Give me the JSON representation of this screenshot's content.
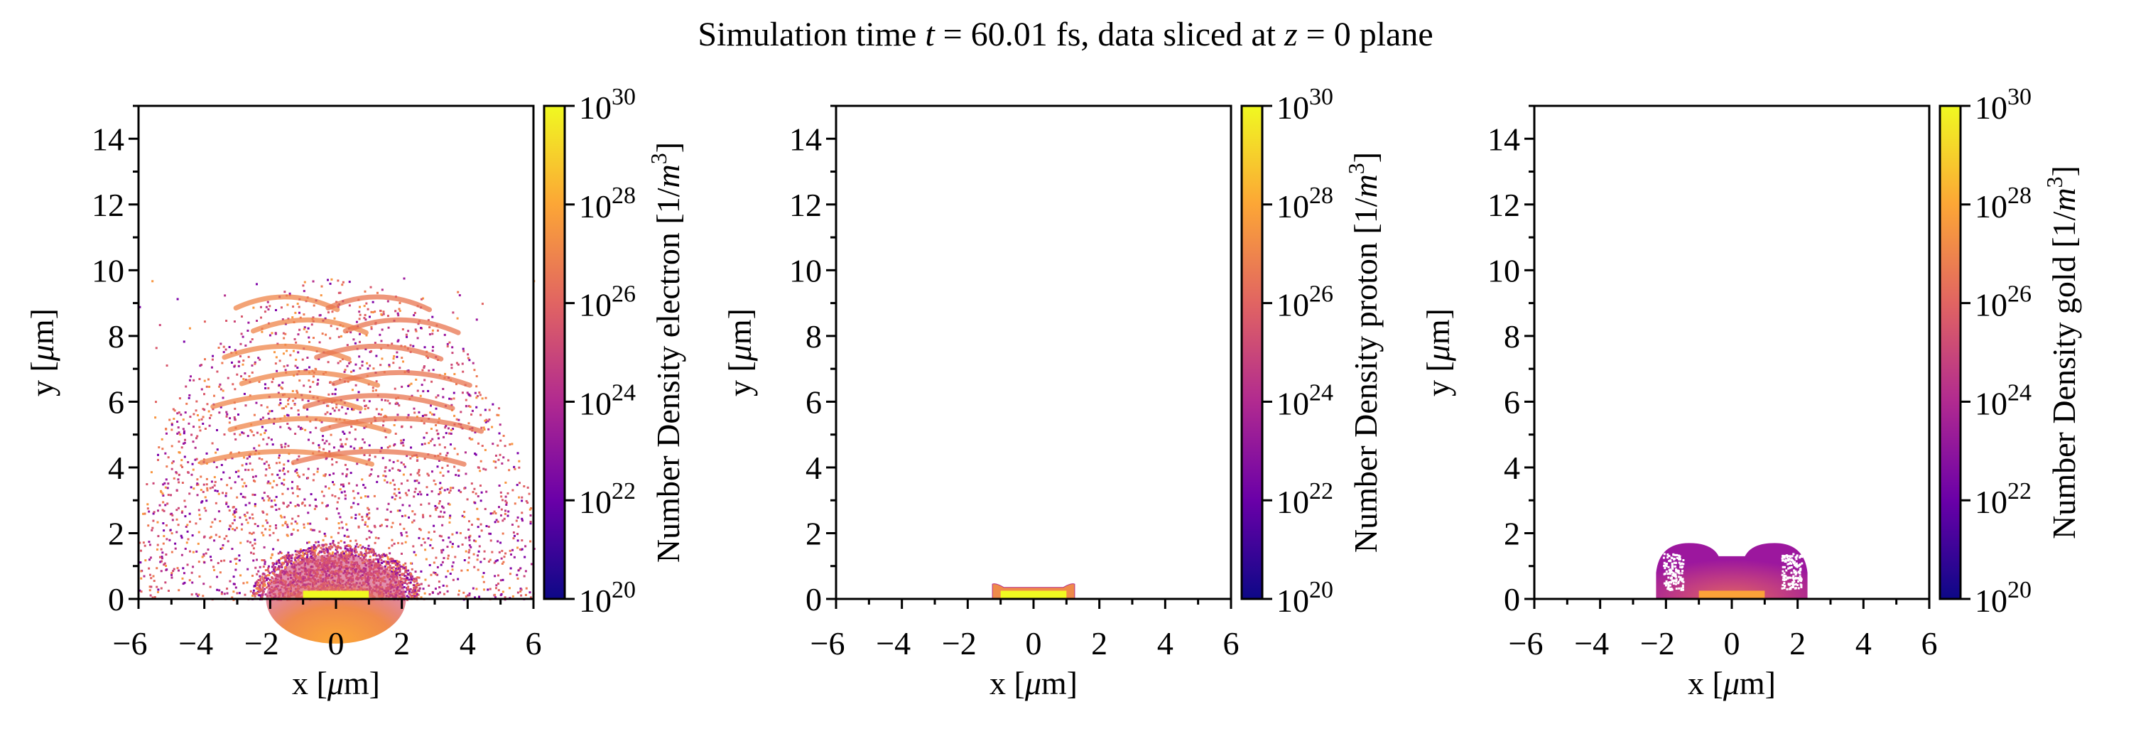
{
  "title_parts": [
    {
      "text": "Simulation time ",
      "italic": false
    },
    {
      "text": "t",
      "italic": true
    },
    {
      "text": " = 60.01 fs, data sliced at ",
      "italic": false
    },
    {
      "text": "z",
      "italic": true
    },
    {
      "text": " = 0 plane",
      "italic": false
    }
  ],
  "chart_data": [
    {
      "type": "heatmap",
      "species": "electron",
      "xlabel": {
        "prefix": "x [",
        "mu": "μ",
        "suffix": "m]"
      },
      "ylabel": {
        "prefix": "y [",
        "mu": "μ",
        "suffix": "m]"
      },
      "xlim": [
        -6,
        6
      ],
      "ylim": [
        0,
        15
      ],
      "xticks": [
        -6,
        -4,
        -2,
        0,
        2,
        4,
        6
      ],
      "yticks": [
        0,
        2,
        4,
        6,
        8,
        10,
        12,
        14
      ],
      "colorbar": {
        "label": "Number Density electron",
        "unit_prefix": " [1/",
        "unit_var": "m",
        "unit_exp": "3",
        "unit_suffix": "]",
        "scale": "log",
        "range_exp": [
          20,
          30
        ],
        "tick_base": "10",
        "tick_exps": [
          "20",
          "22",
          "24",
          "26",
          "28",
          "30"
        ],
        "colormap": "plasma"
      },
      "features": {
        "core": {
          "x": [
            -1,
            1
          ],
          "y": [
            0,
            0.25
          ],
          "log_density": 30
        },
        "dense_cloud": {
          "x": [
            -2.5,
            2.5
          ],
          "y": [
            0,
            1.6
          ],
          "log_density": 27.5
        },
        "bands_y": [
          9.2,
          8.5,
          7.7,
          6.9,
          6.2,
          5.5,
          4.5
        ],
        "scatter_extent": {
          "x": [
            -6,
            6
          ],
          "y": [
            0,
            9.8
          ]
        }
      }
    },
    {
      "type": "heatmap",
      "species": "proton",
      "xlabel": {
        "prefix": "x [",
        "mu": "μ",
        "suffix": "m]"
      },
      "ylabel": {
        "prefix": "y [",
        "mu": "μ",
        "suffix": "m]"
      },
      "xlim": [
        -6,
        6
      ],
      "ylim": [
        0,
        15
      ],
      "xticks": [
        -6,
        -4,
        -2,
        0,
        2,
        4,
        6
      ],
      "yticks": [
        0,
        2,
        4,
        6,
        8,
        10,
        12,
        14
      ],
      "colorbar": {
        "label": "Number Density proton",
        "unit_prefix": " [1/",
        "unit_var": "m",
        "unit_exp": "3",
        "unit_suffix": "]",
        "scale": "log",
        "range_exp": [
          20,
          30
        ],
        "tick_base": "10",
        "tick_exps": [
          "20",
          "22",
          "24",
          "26",
          "28",
          "30"
        ],
        "colormap": "plasma"
      },
      "features": {
        "core": {
          "x": [
            -1,
            1
          ],
          "y": [
            0,
            0.25
          ],
          "log_density": 30
        },
        "shell": {
          "x": [
            -1.25,
            1.25
          ],
          "y": [
            0,
            0.45
          ],
          "log_density": 27.5
        }
      }
    },
    {
      "type": "heatmap",
      "species": "gold",
      "xlabel": {
        "prefix": "x [",
        "mu": "μ",
        "suffix": "m]"
      },
      "ylabel": {
        "prefix": "y [",
        "mu": "μ",
        "suffix": "m]"
      },
      "xlim": [
        -6,
        6
      ],
      "ylim": [
        0,
        15
      ],
      "xticks": [
        -6,
        -4,
        -2,
        0,
        2,
        4,
        6
      ],
      "yticks": [
        0,
        2,
        4,
        6,
        8,
        10,
        12,
        14
      ],
      "colorbar": {
        "label": "Number Density gold",
        "unit_prefix": " [1/",
        "unit_var": "m",
        "unit_exp": "3",
        "unit_suffix": "]",
        "scale": "log",
        "range_exp": [
          20,
          30
        ],
        "tick_base": "10",
        "tick_exps": [
          "20",
          "22",
          "24",
          "26",
          "28",
          "30"
        ],
        "colormap": "plasma"
      },
      "features": {
        "core": {
          "x": [
            -1,
            1
          ],
          "y": [
            0,
            0.25
          ],
          "log_density": 28.5
        },
        "lobes": {
          "centers_x": [
            -1.3,
            1.3
          ],
          "top_y": 1.7,
          "center_dip_y": 1.3,
          "x": [
            -2.3,
            2.3
          ],
          "log_density": 24.5
        }
      }
    }
  ],
  "colors": {
    "plasma": [
      "#0d0887",
      "#6a00a8",
      "#b12a90",
      "#e16462",
      "#fca636",
      "#f0f921"
    ]
  }
}
